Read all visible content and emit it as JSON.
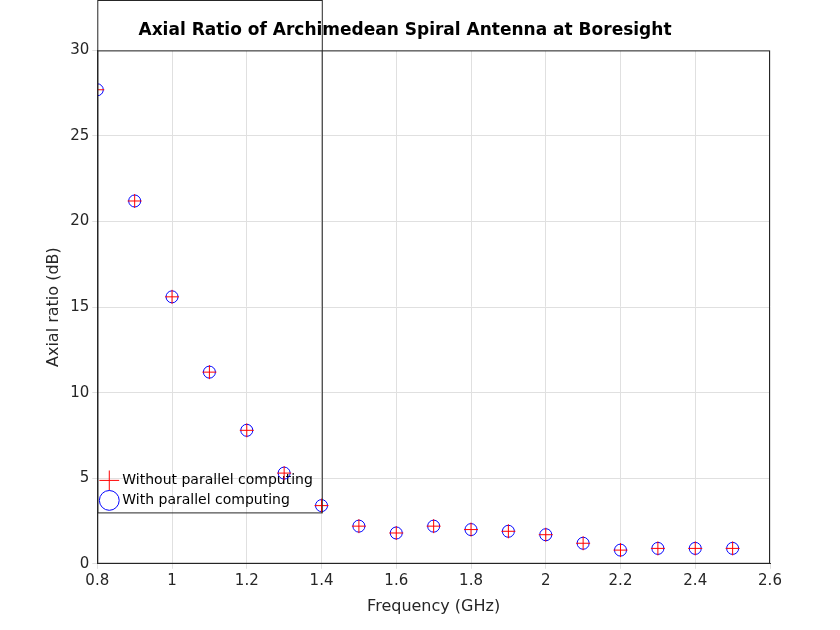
{
  "chart_data": {
    "type": "scatter",
    "title": "Axial Ratio of Archimedean Spiral Antenna at Boresight",
    "x_label": "Frequency (GHz)",
    "y_label": "Axial ratio (dB)",
    "x": [
      0.8,
      0.9,
      1.0,
      1.1,
      1.2,
      1.3,
      1.4,
      1.5,
      1.6,
      1.7,
      1.8,
      1.9,
      2.0,
      2.1,
      2.2,
      2.3,
      2.4,
      2.5
    ],
    "series": [
      {
        "name": "Without parallel computing",
        "color": "#ff0000",
        "marker": "plus",
        "values": [
          27.7,
          21.2,
          15.6,
          11.2,
          7.8,
          5.3,
          3.4,
          2.2,
          1.8,
          2.2,
          2.0,
          1.9,
          1.7,
          1.2,
          0.8,
          0.9,
          0.9,
          0.9
        ]
      },
      {
        "name": "With parallel computing",
        "color": "#0000ff",
        "marker": "circle",
        "values": [
          27.7,
          21.2,
          15.6,
          11.2,
          7.8,
          5.3,
          3.4,
          2.2,
          1.8,
          2.2,
          2.0,
          1.9,
          1.7,
          1.2,
          0.8,
          0.9,
          0.9,
          0.9
        ]
      }
    ],
    "xlim": [
      0.8,
      2.6
    ],
    "xticks": [
      0.8,
      1,
      1.2,
      1.4,
      1.6,
      1.8,
      2,
      2.2,
      2.4,
      2.6
    ],
    "ylim": [
      0,
      30
    ],
    "yticks": [
      0,
      5,
      10,
      15,
      20,
      25,
      30
    ],
    "grid": true,
    "legend": "upper right"
  }
}
